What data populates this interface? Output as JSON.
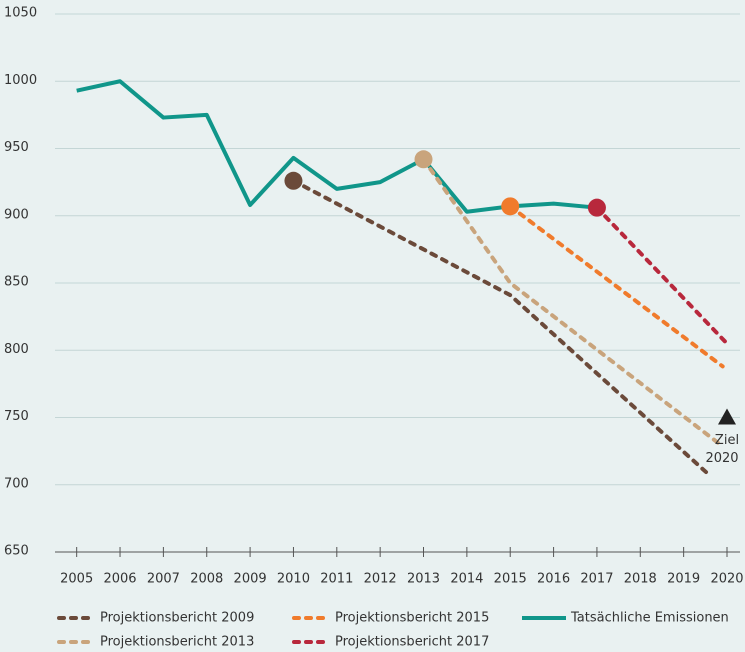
{
  "chart_data": {
    "type": "line",
    "xlim": [
      2004.5,
      2020.3
    ],
    "xticks": [
      2005,
      2006,
      2007,
      2008,
      2009,
      2010,
      2011,
      2012,
      2013,
      2014,
      2015,
      2016,
      2017,
      2018,
      2019,
      2020
    ],
    "ylim": [
      650,
      1050
    ],
    "yticks": [
      650,
      700,
      750,
      800,
      850,
      900,
      950,
      1000,
      1050
    ],
    "grid": true,
    "series": [
      {
        "name": "Tatsächliche Emissionen",
        "color": "#10968a",
        "style": "solid",
        "x": [
          2005,
          2006,
          2007,
          2008,
          2009,
          2010,
          2011,
          2012,
          2013,
          2014,
          2015,
          2016,
          2017
        ],
        "values": [
          993,
          1000,
          973,
          975,
          908,
          943,
          920,
          925,
          942,
          903,
          907,
          909,
          906
        ]
      },
      {
        "name": "Projektionsbericht 2009",
        "color": "#6b4a3a",
        "style": "dashed",
        "start_marker": true,
        "x": [
          2010,
          2014,
          2015,
          2019.6
        ],
        "values": [
          926,
          858,
          841,
          707
        ]
      },
      {
        "name": "Projektionsbericht 2013",
        "color": "#c9a47c",
        "style": "dashed",
        "start_marker": true,
        "x": [
          2013,
          2015,
          2019.8
        ],
        "values": [
          942,
          850,
          731
        ]
      },
      {
        "name": "Projektionsbericht 2015",
        "color": "#f07b2c",
        "style": "dashed",
        "start_marker": true,
        "x": [
          2015,
          2019.9
        ],
        "values": [
          907,
          788
        ]
      },
      {
        "name": "Projektionsbericht 2017",
        "color": "#b8283c",
        "style": "dashed",
        "start_marker": true,
        "x": [
          2017,
          2020
        ],
        "values": [
          906,
          805
        ]
      }
    ],
    "target": {
      "label": [
        "Ziel",
        "2020"
      ],
      "x": 2020,
      "value": 750,
      "color": "#222222"
    }
  }
}
